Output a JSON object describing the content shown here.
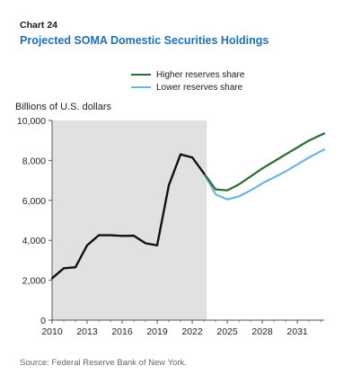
{
  "chart_number": "Chart 24",
  "title": "Projected SOMA Domestic Securities Holdings",
  "source": "Source: Federal Reserve Bank of New York.",
  "colors": {
    "title": "#1f6fb3",
    "higher": "#2e6b2e",
    "lower": "#6cb4e4",
    "history": "#111111",
    "shade": "#e1e1e1"
  },
  "chart_data": {
    "type": "line",
    "ylabel": "Billions of U.S. dollars",
    "xlim": [
      2010,
      2033.3
    ],
    "ylim": [
      0,
      10000
    ],
    "xticks": [
      2010,
      2013,
      2016,
      2019,
      2022,
      2025,
      2028,
      2031
    ],
    "xtick_labels": [
      "2010",
      "2013",
      "2016",
      "2019",
      "2022",
      "2025",
      "2028",
      "2031"
    ],
    "yticks": [
      0,
      2000,
      4000,
      6000,
      8000,
      10000
    ],
    "ytick_labels": [
      "0",
      "2,000",
      "4,000",
      "6,000",
      "8,000",
      "10,000"
    ],
    "shaded_region": [
      2010,
      2023.25
    ],
    "legend_position": "top-center",
    "series": [
      {
        "name": "",
        "key": "history",
        "x": [
          2010,
          2011,
          2012,
          2013,
          2014,
          2015,
          2016,
          2017,
          2018,
          2019,
          2020,
          2021,
          2022,
          2023
        ],
        "y": [
          2100,
          2600,
          2650,
          3750,
          4250,
          4250,
          4220,
          4230,
          3850,
          3750,
          6750,
          8300,
          8150,
          7350
        ]
      },
      {
        "name": "Higher reserves share",
        "key": "higher",
        "x": [
          2023,
          2024,
          2025,
          2026,
          2027,
          2028,
          2029,
          2030,
          2031,
          2032,
          2033.3
        ],
        "y": [
          7350,
          6550,
          6500,
          6800,
          7200,
          7600,
          7950,
          8300,
          8650,
          9000,
          9350
        ]
      },
      {
        "name": "Lower reserves share",
        "key": "lower",
        "x": [
          2023,
          2024,
          2025,
          2026,
          2027,
          2028,
          2029,
          2030,
          2031,
          2032,
          2033.3
        ],
        "y": [
          7350,
          6300,
          6050,
          6200,
          6500,
          6850,
          7150,
          7450,
          7800,
          8150,
          8550
        ]
      }
    ]
  }
}
